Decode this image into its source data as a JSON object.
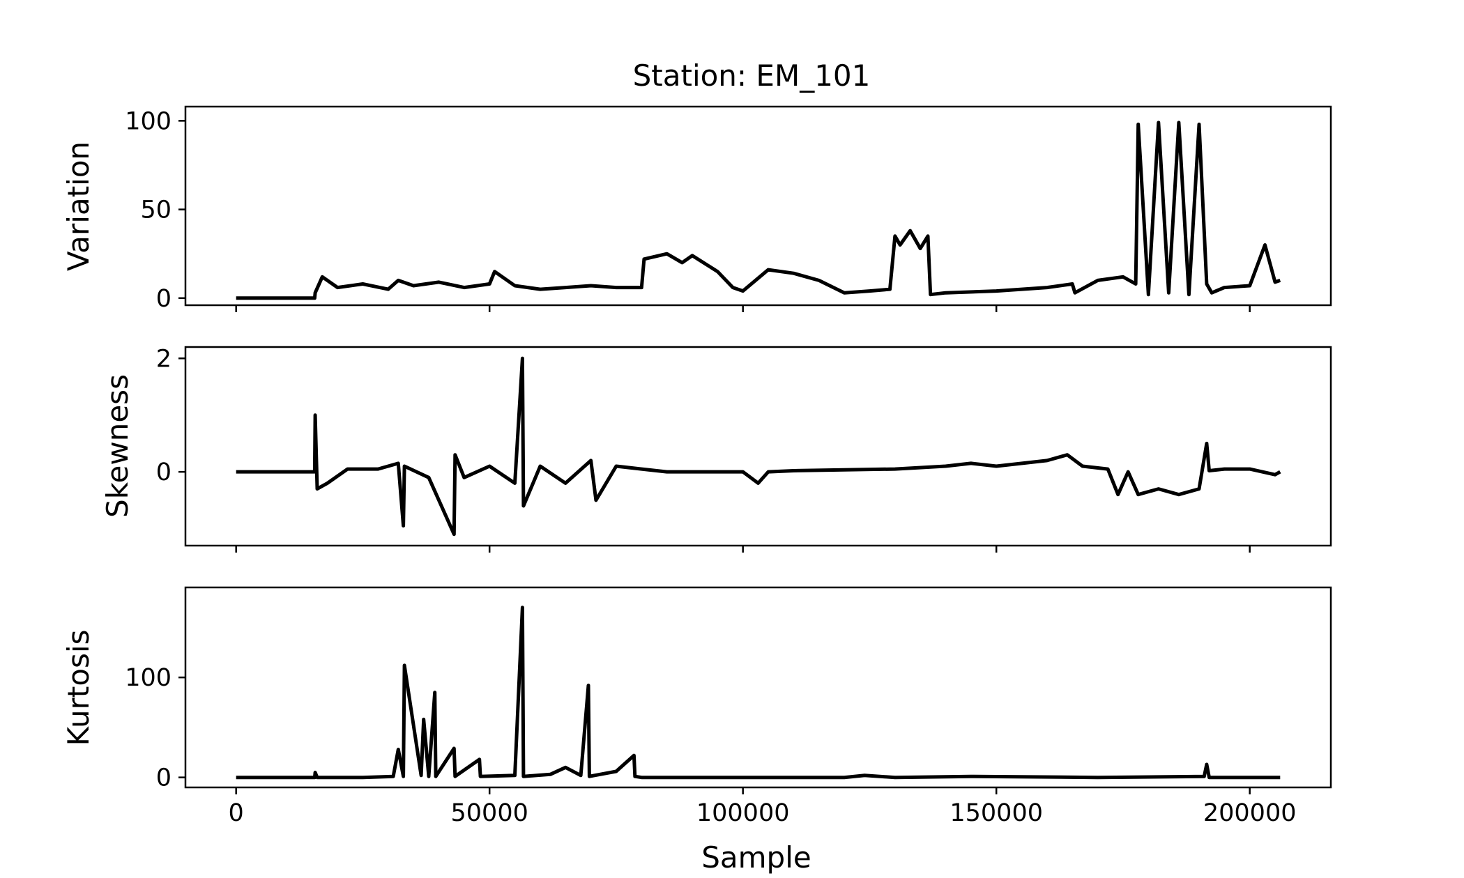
{
  "chart_data": {
    "type": "line",
    "title": "Station: EM_101",
    "xlabel": "Sample",
    "xlim": [
      -10000,
      216000
    ],
    "xticks": [
      0,
      50000,
      100000,
      150000,
      200000
    ],
    "xtick_labels": [
      "0",
      "50000",
      "100000",
      "150000",
      "200000"
    ],
    "grid": false,
    "legend": "none",
    "line_color": "#000000",
    "panels": [
      {
        "id": "variation",
        "ylabel": "Variation",
        "ylim": [
          -4,
          108
        ],
        "yticks": [
          0,
          50,
          100
        ],
        "ytick_labels": [
          "0",
          "50",
          "100"
        ],
        "series": [
          {
            "x": [
              0,
              15500,
              15600,
              17000,
              20000,
              25000,
              30000,
              32000,
              35000,
              40000,
              45000,
              50000,
              51000,
              55000,
              60000,
              65000,
              70000,
              75000,
              80000,
              80500,
              85000,
              88000,
              90000,
              95000,
              98000,
              100000,
              105000,
              110000,
              115000,
              120000,
              125000,
              129000,
              130000,
              131000,
              133000,
              135000,
              136500,
              137000,
              140000,
              150000,
              160000,
              165000,
              165500,
              170000,
              175000,
              177500,
              178000,
              180000,
              182000,
              184000,
              186000,
              188000,
              190000,
              191500,
              192500,
              195000,
              200000,
              203000,
              205000,
              206000
            ],
            "y": [
              0,
              0,
              3,
              12,
              6,
              8,
              5,
              10,
              7,
              9,
              6,
              8,
              15,
              7,
              5,
              6,
              7,
              6,
              6,
              22,
              25,
              20,
              24,
              15,
              6,
              4,
              16,
              14,
              10,
              3,
              4,
              5,
              35,
              30,
              38,
              28,
              35,
              2,
              3,
              4,
              6,
              8,
              3,
              10,
              12,
              8,
              98,
              2,
              99,
              3,
              99,
              2,
              98,
              8,
              3,
              6,
              7,
              30,
              9,
              10
            ]
          }
        ]
      },
      {
        "id": "skewness",
        "ylabel": "Skewness",
        "ylim": [
          -1.3,
          2.2
        ],
        "yticks": [
          0,
          2
        ],
        "ytick_labels": [
          "0",
          "2"
        ],
        "series": [
          {
            "x": [
              0,
              15500,
              15600,
              16000,
              18000,
              22000,
              28000,
              32000,
              33000,
              33200,
              38000,
              43000,
              43200,
              45000,
              50000,
              55000,
              56500,
              56700,
              60000,
              65000,
              70000,
              71000,
              75000,
              80000,
              85000,
              100000,
              103000,
              105000,
              110000,
              130000,
              140000,
              145000,
              150000,
              160000,
              164000,
              167000,
              172000,
              174000,
              175000,
              176000,
              178000,
              182000,
              186000,
              190000,
              191500,
              192000,
              195000,
              200000,
              205000,
              206000
            ],
            "y": [
              0,
              0,
              1.0,
              -0.3,
              -0.2,
              0.05,
              0.05,
              0.15,
              -0.95,
              0.1,
              -0.1,
              -1.1,
              0.3,
              -0.1,
              0.1,
              -0.2,
              2.0,
              -0.6,
              0.1,
              -0.2,
              0.2,
              -0.5,
              0.1,
              0.05,
              0.0,
              0.0,
              -0.2,
              0.0,
              0.02,
              0.05,
              0.1,
              0.15,
              0.1,
              0.2,
              0.3,
              0.1,
              0.05,
              -0.4,
              -0.2,
              0.0,
              -0.4,
              -0.3,
              -0.4,
              -0.3,
              0.5,
              0.02,
              0.05,
              0.05,
              -0.05,
              0.0
            ]
          }
        ]
      },
      {
        "id": "kurtosis",
        "ylabel": "Kurtosis",
        "ylim": [
          -10,
          190
        ],
        "yticks": [
          0,
          100
        ],
        "ytick_labels": [
          "0",
          "100"
        ],
        "series": [
          {
            "x": [
              0,
              15500,
              15600,
              16000,
              25000,
              31000,
              32000,
              33000,
              33200,
              36500,
              37000,
              38000,
              39200,
              39400,
              43000,
              43200,
              48000,
              48200,
              55000,
              56500,
              56700,
              62000,
              65000,
              68000,
              69500,
              69700,
              75000,
              78500,
              78700,
              80000,
              100000,
              120000,
              124000,
              130000,
              145000,
              170000,
              191000,
              191500,
              192000,
              200000,
              206000
            ],
            "y": [
              0,
              0,
              5,
              0,
              0,
              1,
              28,
              1,
              112,
              2,
              58,
              1,
              85,
              1,
              29,
              1,
              18,
              1,
              2,
              170,
              1,
              3,
              10,
              2,
              92,
              1,
              6,
              22,
              1,
              0,
              0,
              0,
              2,
              0,
              1,
              0,
              1,
              13,
              0,
              0,
              0
            ]
          }
        ]
      }
    ]
  }
}
